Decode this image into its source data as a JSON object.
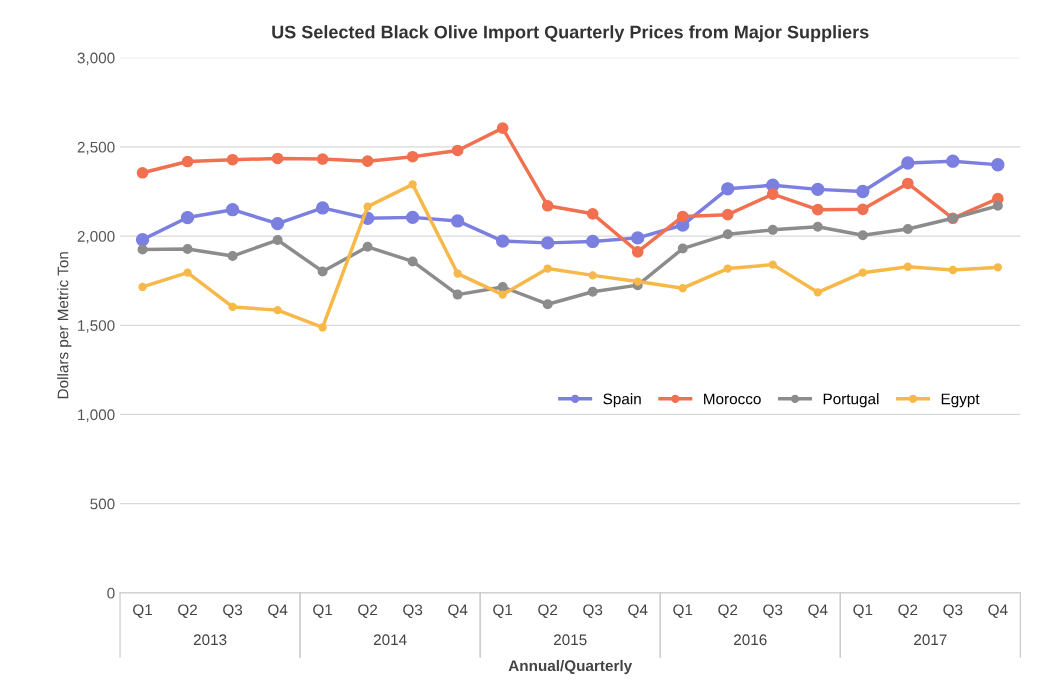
{
  "chart_data": {
    "type": "line",
    "title": "US Selected Black Olive Import Quarterly Prices from Major Suppliers",
    "xlabel": "Annual/Quarterly",
    "ylabel": "Dollars per Metric Ton",
    "categories": [
      "Q1",
      "Q2",
      "Q3",
      "Q4",
      "Q1",
      "Q2",
      "Q3",
      "Q4",
      "Q1",
      "Q2",
      "Q3",
      "Q4",
      "Q1",
      "Q2",
      "Q3",
      "Q4",
      "Q1",
      "Q2",
      "Q3",
      "Q4"
    ],
    "annotations": [
      "2013",
      "2014",
      "2015",
      "2016",
      "2017"
    ],
    "series": [
      {
        "name": "Spain",
        "color": "#7b7fe0",
        "values": [
          1980,
          2104,
          2148,
          2070,
          2158,
          2100,
          2105,
          2085,
          1972,
          1962,
          1970,
          1990,
          2062,
          2265,
          2285,
          2262,
          2250,
          2410,
          2420,
          2400
        ]
      },
      {
        "name": "Morocco",
        "color": "#f07050",
        "values": [
          2355,
          2418,
          2428,
          2435,
          2432,
          2420,
          2445,
          2480,
          2605,
          2170,
          2125,
          1912,
          2110,
          2120,
          2235,
          2148,
          2150,
          2295,
          2100,
          2210
        ]
      },
      {
        "name": "Portugal",
        "color": "#8c8c8c",
        "values": [
          1925,
          1928,
          1888,
          1978,
          1802,
          1940,
          1858,
          1672,
          1715,
          1618,
          1688,
          1725,
          1930,
          2010,
          2035,
          2052,
          2005,
          2040,
          2100,
          2170
        ]
      },
      {
        "name": "Egypt",
        "color": "#f7b84a",
        "values": [
          1715,
          1795,
          1603,
          1585,
          1488,
          2165,
          2290,
          1790,
          1672,
          1818,
          1780,
          1745,
          1708,
          1818,
          1840,
          1685,
          1795,
          1828,
          1810,
          1825
        ]
      }
    ],
    "ylim": [
      0,
      3000
    ],
    "yticks": [
      {
        "value": 0,
        "label": "0"
      },
      {
        "value": 500,
        "label": "500"
      },
      {
        "value": 1000,
        "label": "1,000"
      },
      {
        "value": 1500,
        "label": "1,500"
      },
      {
        "value": 2000,
        "label": "2,000"
      },
      {
        "value": 2500,
        "label": "2,500"
      },
      {
        "value": 3000,
        "label": "3,000"
      }
    ],
    "grid": "y",
    "legend": "right",
    "marker": "circle",
    "line_style": "solid"
  }
}
